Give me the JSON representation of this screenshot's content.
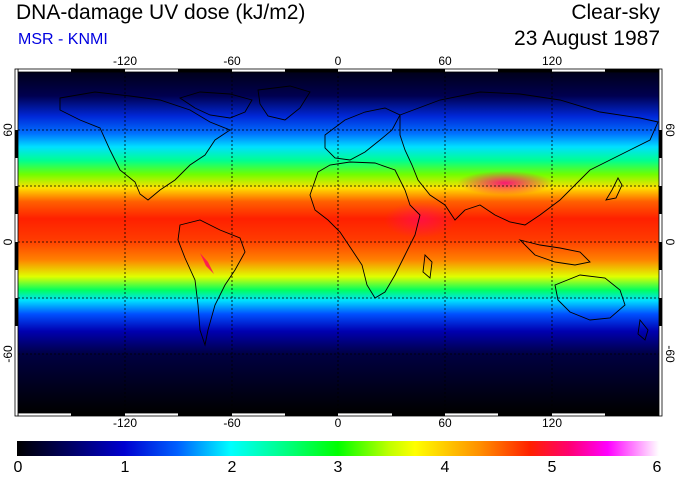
{
  "header": {
    "title": "DNA-damage UV dose (kJ/m2)",
    "subtitle": "MSR - KNMI",
    "condition": "Clear-sky",
    "date": "23 August 1987"
  },
  "map": {
    "longitude_ticks": [
      "-120",
      "-60",
      "0",
      "60",
      "120"
    ],
    "latitude_ticks": [
      "60",
      "0",
      "-60"
    ],
    "gridlines": "dashed, every 30 degrees",
    "colors": {
      "land_outline": "#000000",
      "grid": "#000000"
    }
  },
  "colorbar": {
    "labels": [
      "0",
      "1",
      "2",
      "3",
      "4",
      "5",
      "6"
    ],
    "min": 0,
    "max": 6,
    "colors": [
      "#000000",
      "#0000d0",
      "#00ffff",
      "#00ff00",
      "#ffff00",
      "#ff2000",
      "#ff00ff",
      "#ffffff"
    ]
  }
}
